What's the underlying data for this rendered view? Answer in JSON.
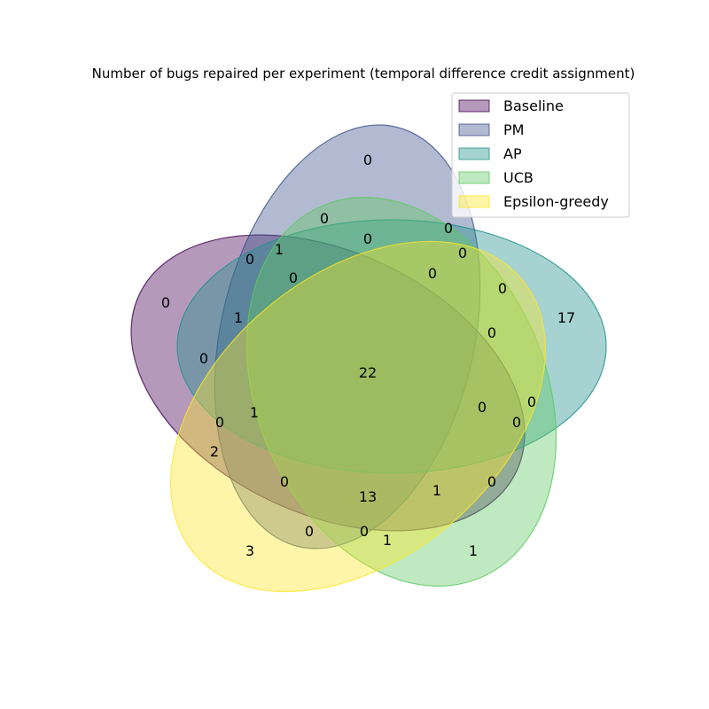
{
  "chart_data": {
    "type": "venn",
    "title": "Number of bugs repaired per experiment (temporal difference credit assignment)",
    "legend_placement": "top-right",
    "sets": [
      {
        "name": "Baseline",
        "color": "#440154"
      },
      {
        "name": "PM",
        "color": "#3b528b"
      },
      {
        "name": "AP",
        "color": "#21918c"
      },
      {
        "name": "UCB",
        "color": "#5ec962"
      },
      {
        "name": "Epsilon-greedy",
        "color": "#fde725"
      }
    ],
    "regions": [
      {
        "sets": "10000",
        "value": 0
      },
      {
        "sets": "01000",
        "value": 0
      },
      {
        "sets": "00100",
        "value": 17
      },
      {
        "sets": "00010",
        "value": 1
      },
      {
        "sets": "00001",
        "value": 3
      },
      {
        "sets": "11000",
        "value": 0
      },
      {
        "sets": "10100",
        "value": 0
      },
      {
        "sets": "10010",
        "value": 0
      },
      {
        "sets": "10001",
        "value": 2
      },
      {
        "sets": "01100",
        "value": 0
      },
      {
        "sets": "01010",
        "value": 0
      },
      {
        "sets": "01001",
        "value": 0
      },
      {
        "sets": "00110",
        "value": 0
      },
      {
        "sets": "00101",
        "value": 0
      },
      {
        "sets": "00011",
        "value": 1
      },
      {
        "sets": "11100",
        "value": 1
      },
      {
        "sets": "11010",
        "value": 1
      },
      {
        "sets": "11001",
        "value": 0
      },
      {
        "sets": "10110",
        "value": 0
      },
      {
        "sets": "10101",
        "value": 0
      },
      {
        "sets": "10011",
        "value": 0
      },
      {
        "sets": "01110",
        "value": 0
      },
      {
        "sets": "01101",
        "value": 0
      },
      {
        "sets": "01011",
        "value": 0
      },
      {
        "sets": "00111",
        "value": 0
      },
      {
        "sets": "11110",
        "value": 0
      },
      {
        "sets": "11101",
        "value": 1
      },
      {
        "sets": "11011",
        "value": 13
      },
      {
        "sets": "10111",
        "value": 1
      },
      {
        "sets": "01111",
        "value": 0
      },
      {
        "sets": "11111",
        "value": 22
      }
    ]
  }
}
